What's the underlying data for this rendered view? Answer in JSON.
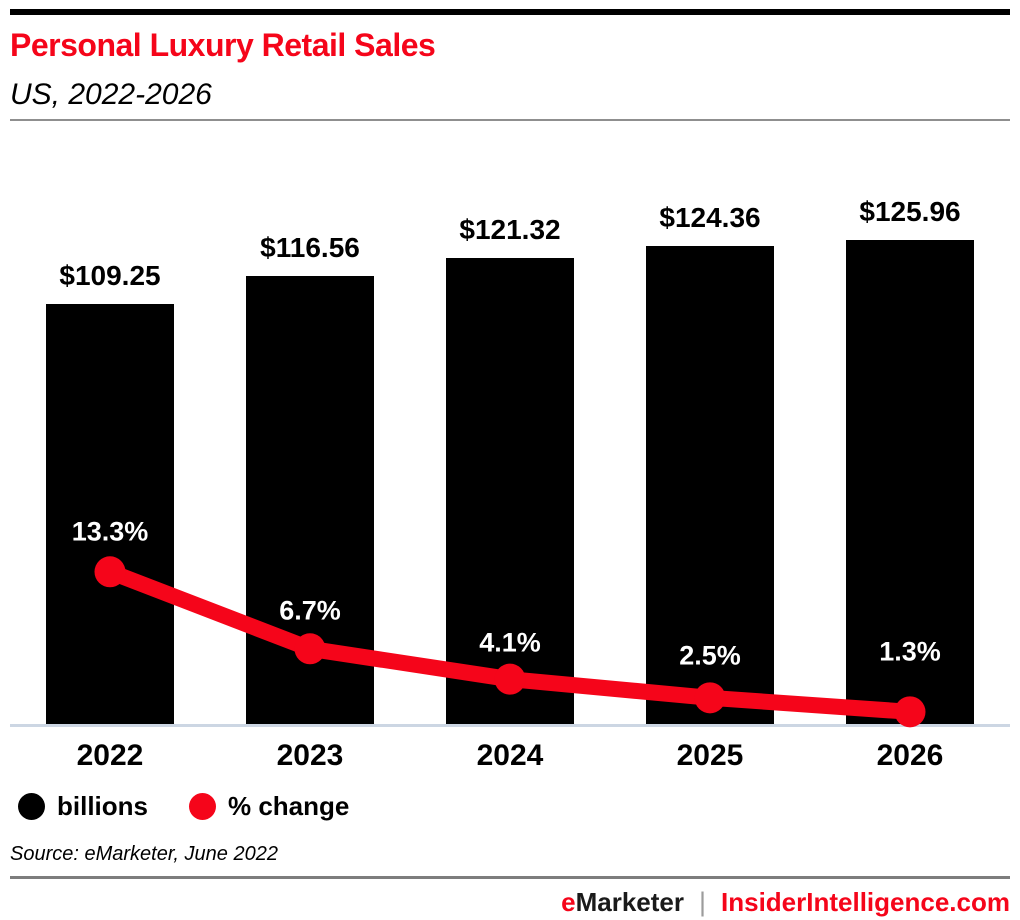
{
  "header": {
    "title": "Personal Luxury Retail Sales",
    "subtitle": "US, 2022-2026"
  },
  "chart_data": {
    "type": "bar",
    "combo": "bar+line",
    "title": "Personal Luxury Retail Sales",
    "subtitle": "US, 2022-2026",
    "categories": [
      "2022",
      "2023",
      "2024",
      "2025",
      "2026"
    ],
    "series": [
      {
        "name": "billions",
        "chart_type": "bar",
        "color": "#000000",
        "unit": "US$ billions",
        "values": [
          109.25,
          116.56,
          121.32,
          124.36,
          125.96
        ],
        "labels": [
          "$109.25",
          "$116.56",
          "$121.32",
          "$124.36",
          "$125.96"
        ]
      },
      {
        "name": "% change",
        "chart_type": "line",
        "color": "#f5051a",
        "unit": "percent",
        "values": [
          13.3,
          6.7,
          4.1,
          2.5,
          1.3
        ],
        "labels": [
          "13.3%",
          "6.7%",
          "4.1%",
          "2.5%",
          "1.3%"
        ]
      }
    ],
    "ylim": [
      0,
      126
    ],
    "grid": false,
    "y_axis_shown": false,
    "legend_position": "bottom-left"
  },
  "legend": {
    "items": [
      {
        "label": "billions",
        "color": "#000000",
        "swatch": "circle-icon"
      },
      {
        "label": "% change",
        "color": "#f5051a",
        "swatch": "circle-icon"
      }
    ]
  },
  "source": {
    "text": "Source: eMarketer, June 2022"
  },
  "footer": {
    "brand_e": "e",
    "brand_rest": "Marketer",
    "separator": "|",
    "site": "InsiderIntelligence.com"
  },
  "colors": {
    "accent_red": "#f5051a",
    "bar_black": "#000000",
    "axis_line": "#ccd6e3",
    "header_rule": "#8f8f8f",
    "footer_rule": "#7d7d7d",
    "footer_separator": "#9c9c9c"
  }
}
